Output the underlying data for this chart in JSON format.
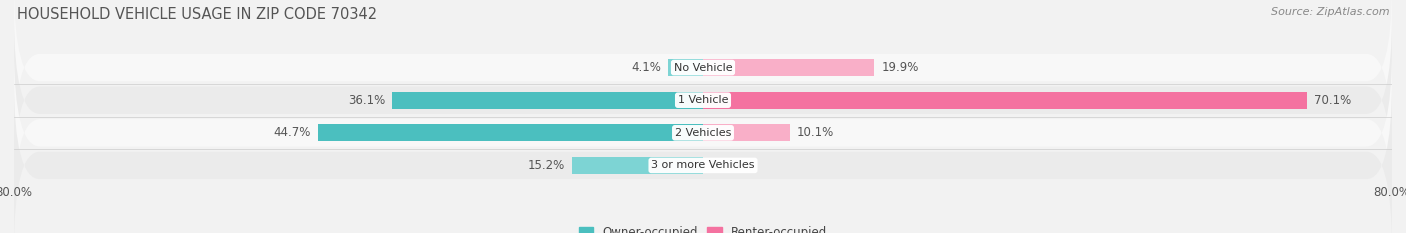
{
  "title": "HOUSEHOLD VEHICLE USAGE IN ZIP CODE 70342",
  "source": "Source: ZipAtlas.com",
  "categories": [
    "No Vehicle",
    "1 Vehicle",
    "2 Vehicles",
    "3 or more Vehicles"
  ],
  "owner_values": [
    4.1,
    36.1,
    44.7,
    15.2
  ],
  "renter_values": [
    19.9,
    70.1,
    10.1,
    0.0
  ],
  "owner_color": "#4bbfbf",
  "renter_color": "#f472a0",
  "owner_color_light": "#7dd4d4",
  "renter_color_light": "#f9afc8",
  "owner_label": "Owner-occupied",
  "renter_label": "Renter-occupied",
  "xlim": [
    -80,
    80
  ],
  "xtick_left": -80,
  "xtick_right": 80,
  "bg_color": "#f2f2f2",
  "row_color_odd": "#f8f8f8",
  "row_color_even": "#ebebeb",
  "title_fontsize": 10.5,
  "source_fontsize": 8,
  "label_fontsize": 8.5,
  "category_fontsize": 8,
  "tick_fontsize": 8.5,
  "bar_height": 0.52
}
